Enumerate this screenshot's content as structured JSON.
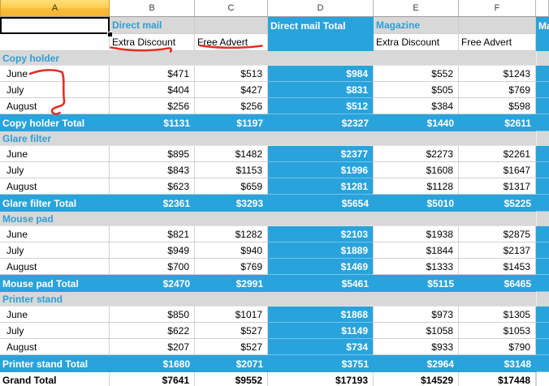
{
  "columns": {
    "letters": [
      "A",
      "B",
      "C",
      "D",
      "E",
      "F"
    ],
    "selected_letter": "A"
  },
  "header": {
    "direct_mail": "Direct mail",
    "direct_mail_total": "Direct mail Total",
    "magazine": "Magazine",
    "magazine_total_clipped": "Ma",
    "sub_b": "Extra Discount",
    "sub_c": "Free Advert",
    "sub_e": "Extra Discount",
    "sub_f": "Free Advert"
  },
  "sections": [
    {
      "name": "Copy holder",
      "rows": [
        {
          "label": "June",
          "values": [
            "$471",
            "$513",
            "$984",
            "$552",
            "$1243"
          ]
        },
        {
          "label": "July",
          "values": [
            "$404",
            "$427",
            "$831",
            "$505",
            "$769"
          ]
        },
        {
          "label": "August",
          "values": [
            "$256",
            "$256",
            "$512",
            "$384",
            "$598"
          ]
        }
      ],
      "total": {
        "label": "Copy holder Total",
        "values": [
          "$1131",
          "$1197",
          "$2327",
          "$1440",
          "$2611"
        ]
      }
    },
    {
      "name": "Glare filter",
      "rows": [
        {
          "label": "June",
          "values": [
            "$895",
            "$1482",
            "$2377",
            "$2273",
            "$2261"
          ]
        },
        {
          "label": "July",
          "values": [
            "$843",
            "$1153",
            "$1996",
            "$1608",
            "$1647"
          ]
        },
        {
          "label": "August",
          "values": [
            "$623",
            "$659",
            "$1281",
            "$1128",
            "$1317"
          ]
        }
      ],
      "total": {
        "label": "Glare filter Total",
        "values": [
          "$2361",
          "$3293",
          "$5654",
          "$5010",
          "$5225"
        ]
      }
    },
    {
      "name": "Mouse pad",
      "rows": [
        {
          "label": "June",
          "values": [
            "$821",
            "$1282",
            "$2103",
            "$1938",
            "$2875"
          ]
        },
        {
          "label": "July",
          "values": [
            "$949",
            "$940",
            "$1889",
            "$1844",
            "$2137"
          ]
        },
        {
          "label": "August",
          "values": [
            "$700",
            "$769",
            "$1469",
            "$1333",
            "$1453"
          ]
        }
      ],
      "total": {
        "label": "Mouse pad Total",
        "values": [
          "$2470",
          "$2991",
          "$5461",
          "$5115",
          "$6465"
        ]
      }
    },
    {
      "name": "Printer stand",
      "rows": [
        {
          "label": "June",
          "values": [
            "$850",
            "$1017",
            "$1868",
            "$973",
            "$1305"
          ]
        },
        {
          "label": "July",
          "values": [
            "$622",
            "$527",
            "$1149",
            "$1058",
            "$1053"
          ]
        },
        {
          "label": "August",
          "values": [
            "$207",
            "$527",
            "$734",
            "$933",
            "$790"
          ]
        }
      ],
      "total": {
        "label": "Printer stand Total",
        "values": [
          "$1680",
          "$2071",
          "$3751",
          "$2964",
          "$3148"
        ]
      }
    }
  ],
  "grand_total": {
    "label": "Grand Total",
    "values": [
      "$7641",
      "$9552",
      "$17193",
      "$14529",
      "$17448"
    ]
  },
  "annotations": {
    "items": [
      "underline-extra-discount",
      "underline-free-advert",
      "bracket-june-august"
    ]
  },
  "colors": {
    "pivot_blue": "#29a3dc",
    "blue_text": "#2c9fd6",
    "band_gray": "#d8d8d8",
    "grid_border": "#d0d0d0",
    "selected_header_yellow": "#fbc94e",
    "annotation_red": "#e2251b"
  }
}
